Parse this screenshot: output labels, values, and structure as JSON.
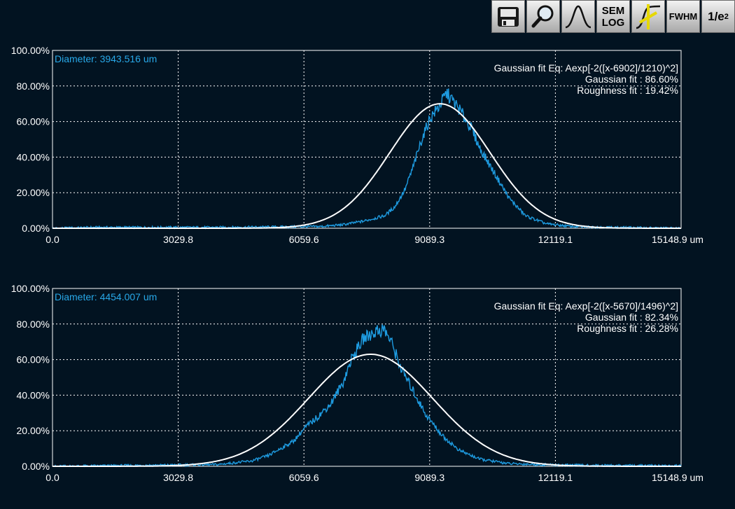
{
  "toolbar": {
    "save_icon": "save-icon",
    "zoom_icon": "magnifier-icon",
    "gauss_icon": "gaussian-curve-icon",
    "sem_label": "SEM",
    "log_label": "LOG",
    "fit_icon": "fit-curve-icon",
    "fwhm_label": "FWHM",
    "inv_e_label": "1/e",
    "inv_e_sup": "2"
  },
  "colors": {
    "background": "#021321",
    "profile": "#1e9be0",
    "fit": "#ffffff",
    "diameter_text": "#28a8e8"
  },
  "chart_data": [
    {
      "type": "line",
      "diameter_label": "Diameter: 3943.516 um",
      "fit_eq": "Gaussian fit Eq: Aexp[-2([x-6902]/1210)^2]",
      "gauss_fit": "Gaussian fit : 86.60%",
      "rough_fit": "Roughness fit : 19.42%",
      "x_ticks": [
        "0.0",
        "3029.8",
        "6059.6",
        "9089.3",
        "12119.1",
        "15148.9 um"
      ],
      "y_ticks": [
        "0.00%",
        "20.00%",
        "40.00%",
        "60.00%",
        "80.00%",
        "100.00%"
      ],
      "xlim": [
        0,
        15148.9
      ],
      "ylim": [
        0,
        100
      ],
      "grid": true,
      "series": [
        {
          "role": "fit",
          "center": 9337,
          "sigma": 2420,
          "amplitude": 70
        },
        {
          "role": "profile",
          "x": [
            0,
            1000,
            4000,
            6500,
            7000,
            7500,
            8000,
            8250,
            8500,
            8700,
            8900,
            9100,
            9300,
            9500,
            9800,
            10100,
            10300,
            10600,
            11000,
            11400,
            11900,
            12500,
            13500,
            15148.9
          ],
          "y": [
            0,
            0.5,
            0.5,
            1,
            2,
            4,
            7,
            12,
            22,
            35,
            50,
            62,
            68,
            76,
            67,
            56,
            45,
            33,
            17,
            7,
            2.5,
            1,
            0.5,
            0
          ]
        }
      ]
    },
    {
      "type": "line",
      "diameter_label": "Diameter: 4454.007 um",
      "fit_eq": "Gaussian fit Eq: Aexp[-2([x-5670]/1496)^2]",
      "gauss_fit": "Gaussian fit : 82.34%",
      "rough_fit": "Roughness fit : 26.28%",
      "x_ticks": [
        "0.0",
        "3029.8",
        "6059.6",
        "9089.3",
        "12119.1",
        "15148.9 um"
      ],
      "y_ticks": [
        "0.00%",
        "20.00%",
        "40.00%",
        "60.00%",
        "80.00%",
        "100.00%"
      ],
      "xlim": [
        0,
        15148.9
      ],
      "ylim": [
        0,
        100
      ],
      "grid": true,
      "series": [
        {
          "role": "fit",
          "center": 7665,
          "sigma": 2992,
          "amplitude": 63
        },
        {
          "role": "profile",
          "x": [
            0,
            2000,
            4000,
            4800,
            5200,
            5500,
            5800,
            6100,
            6400,
            6700,
            7000,
            7200,
            7500,
            7800,
            8000,
            8200,
            8400,
            8700,
            9000,
            9400,
            9800,
            10300,
            11000,
            12000,
            13000,
            15148.9
          ],
          "y": [
            0,
            0.5,
            1,
            3,
            6,
            10,
            14,
            22,
            28,
            35,
            47,
            60,
            72,
            76,
            77,
            68,
            55,
            42,
            29,
            17,
            9,
            4,
            1.5,
            0.8,
            0.5,
            0.3
          ]
        }
      ]
    }
  ]
}
